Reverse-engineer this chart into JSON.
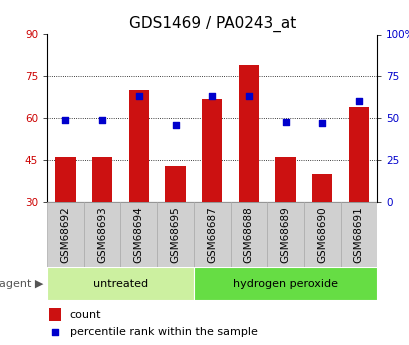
{
  "title": "GDS1469 / PA0243_at",
  "samples": [
    "GSM68692",
    "GSM68693",
    "GSM68694",
    "GSM68695",
    "GSM68687",
    "GSM68688",
    "GSM68689",
    "GSM68690",
    "GSM68691"
  ],
  "counts": [
    46.0,
    46.2,
    70.0,
    43.0,
    67.0,
    79.0,
    46.0,
    40.0,
    64.0
  ],
  "percentiles": [
    49,
    49,
    63,
    46,
    63,
    63,
    48,
    47,
    60
  ],
  "groups": [
    "untreated",
    "untreated",
    "untreated",
    "untreated",
    "hydrogen peroxide",
    "hydrogen peroxide",
    "hydrogen peroxide",
    "hydrogen peroxide",
    "hydrogen peroxide"
  ],
  "left_ylim": [
    30,
    90
  ],
  "right_ylim": [
    0,
    100
  ],
  "left_yticks": [
    30,
    45,
    60,
    75,
    90
  ],
  "right_yticks": [
    0,
    25,
    50,
    75,
    100
  ],
  "right_yticklabels": [
    "0",
    "25",
    "50",
    "75",
    "100%"
  ],
  "bar_color": "#cc1111",
  "dot_color": "#0000cc",
  "bar_width": 0.55,
  "group_colors": {
    "untreated": "#ccf0a0",
    "hydrogen peroxide": "#66dd44"
  },
  "group_label": "agent",
  "legend_count_label": "count",
  "legend_pct_label": "percentile rank within the sample",
  "title_fontsize": 11,
  "tick_fontsize": 7.5,
  "legend_fontsize": 8,
  "bg_color": "#ffffff",
  "left_tick_color": "#cc0000",
  "right_tick_color": "#0000cc",
  "sample_box_color": "#d0d0d0",
  "sample_box_edge_color": "#aaaaaa"
}
